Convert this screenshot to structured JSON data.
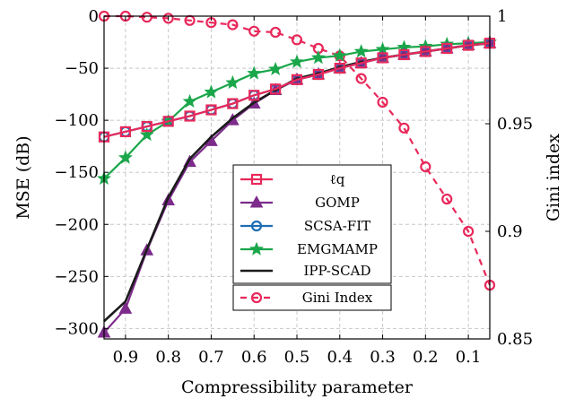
{
  "chart_data": {
    "type": "line",
    "xlabel": "Compressibility parameter",
    "ylabel_left": "MSE (dB)",
    "ylabel_right": "Gini index",
    "x_reversed": true,
    "xlim": [
      0.95,
      0.05
    ],
    "ylim_left": [
      -310,
      0
    ],
    "ylim_right": [
      0.85,
      1.0
    ],
    "x_ticks": [
      0.9,
      0.8,
      0.7,
      0.6,
      0.5,
      0.4,
      0.3,
      0.2,
      0.1
    ],
    "x_tick_labels": [
      "0.9",
      "0.8",
      "0.7",
      "0.6",
      "0.5",
      "0.4",
      "0.3",
      "0.2",
      "0.1"
    ],
    "y_left_ticks": [
      0,
      -50,
      -100,
      -150,
      -200,
      -250,
      -300
    ],
    "y_left_tick_labels": [
      "0",
      "−50",
      "−100",
      "−150",
      "−200",
      "−250",
      "−300"
    ],
    "y_right_ticks": [
      1.0,
      0.95,
      0.9,
      0.85
    ],
    "y_right_tick_labels": [
      "1",
      "0.95",
      "0.9",
      "0.85"
    ],
    "grid": true,
    "legend_position": "center",
    "x": [
      0.95,
      0.9,
      0.85,
      0.8,
      0.75,
      0.7,
      0.65,
      0.6,
      0.55,
      0.5,
      0.45,
      0.4,
      0.35,
      0.3,
      0.25,
      0.2,
      0.15,
      0.1,
      0.05
    ],
    "series": [
      {
        "name": "ℓq",
        "axis": "left",
        "color": "#e8285a",
        "marker": "square",
        "dashed": false,
        "values": [
          -116,
          -111,
          -106,
          -101,
          -96,
          -90,
          -84,
          -76,
          -70,
          -61,
          -56,
          -50,
          -45,
          -40,
          -37,
          -34,
          -31,
          -28,
          -26
        ]
      },
      {
        "name": "GOMP",
        "axis": "left",
        "color": "#7d2b8b",
        "marker": "triangle",
        "dashed": false,
        "values": [
          -304,
          -281,
          -225,
          -177,
          -140,
          -120,
          -100,
          -84,
          -71,
          -61,
          -56,
          -50,
          -45,
          -40,
          -37,
          -34,
          -31,
          -28,
          -26
        ]
      },
      {
        "name": "SCSA-FIT",
        "axis": "left",
        "color": "#1f6eb4",
        "marker": "circle",
        "dashed": false,
        "values": [
          -116,
          -111,
          -106,
          -101,
          -96,
          -90,
          -84,
          -76,
          -70,
          -61,
          -56,
          -50,
          -45,
          -40,
          -37,
          -34,
          -31,
          -28,
          -26
        ]
      },
      {
        "name": "EMGMAMP",
        "axis": "left",
        "color": "#1aa64a",
        "marker": "star",
        "dashed": false,
        "values": [
          -156,
          -136,
          -114,
          -101,
          -82,
          -73,
          -64,
          -55,
          -51,
          -44,
          -40,
          -38,
          -34,
          -32,
          -30,
          -29,
          -27,
          -26,
          -25
        ]
      },
      {
        "name": "IPP-SCAD",
        "axis": "left",
        "color": "#1b1b1b",
        "marker": "none",
        "dashed": false,
        "values": [
          -293,
          -274,
          -224,
          -174,
          -137,
          -116,
          -98,
          -83,
          -71,
          -60,
          -55,
          -49,
          -44,
          -40,
          -37,
          -34,
          -31,
          -28,
          -26
        ]
      },
      {
        "name": "Gini Index",
        "axis": "right",
        "color": "#e8285a",
        "marker": "circle",
        "dashed": true,
        "values": [
          1.0,
          1.0,
          0.9995,
          0.999,
          0.998,
          0.997,
          0.996,
          0.993,
          0.9925,
          0.989,
          0.985,
          0.9815,
          0.971,
          0.96,
          0.948,
          0.93,
          0.915,
          0.9,
          0.875
        ]
      }
    ]
  }
}
